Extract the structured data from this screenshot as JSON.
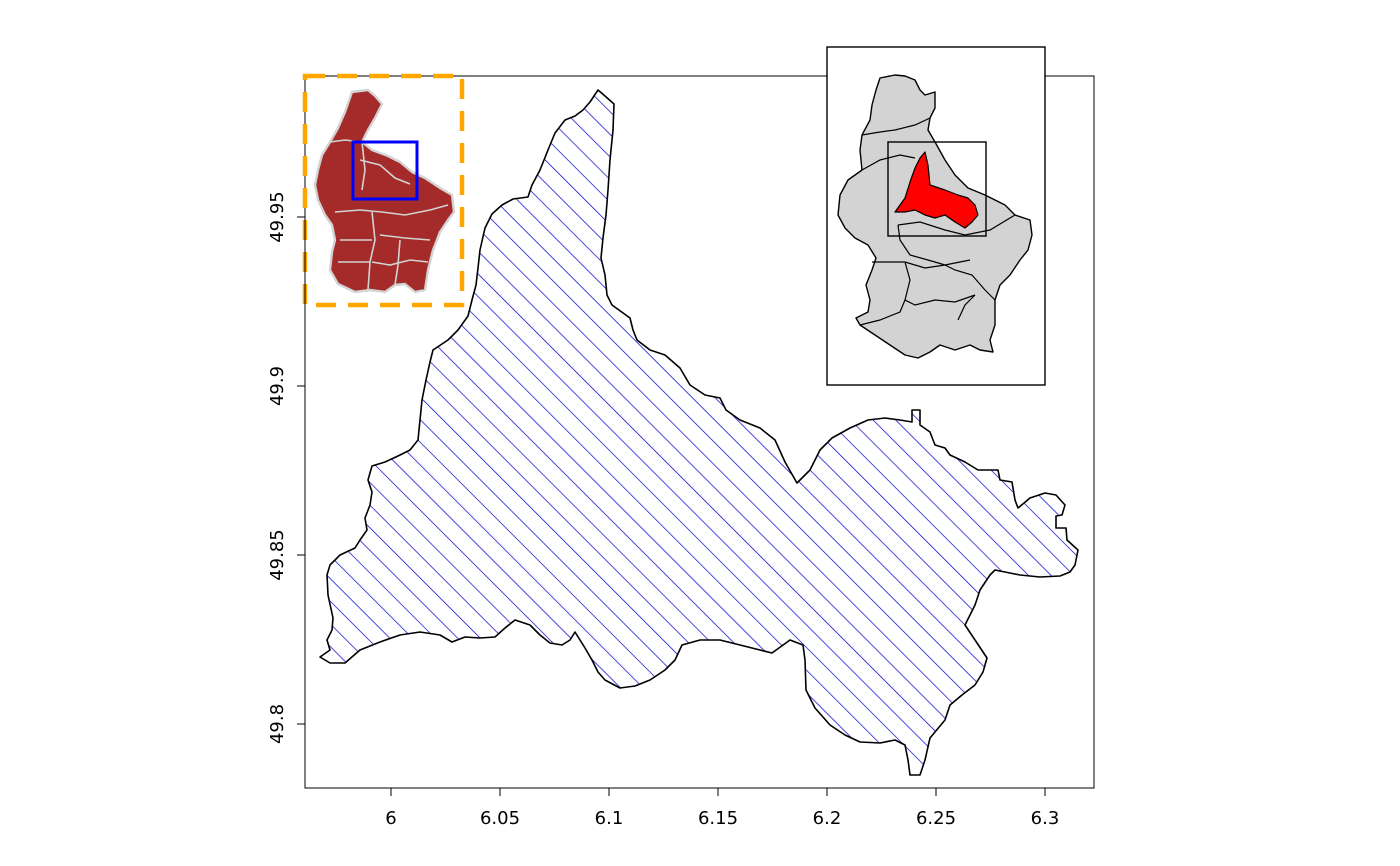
{
  "map": {
    "x_axis": {
      "ticks": [
        {
          "value": 6,
          "label": "6"
        },
        {
          "value": 6.05,
          "label": "6.05"
        },
        {
          "value": 6.1,
          "label": "6.1"
        },
        {
          "value": 6.15,
          "label": "6.15"
        },
        {
          "value": 6.2,
          "label": "6.2"
        },
        {
          "value": 6.25,
          "label": "6.25"
        },
        {
          "value": 6.3,
          "label": "6.3"
        }
      ]
    },
    "y_axis": {
      "ticks": [
        {
          "value": 49.8,
          "label": "49.8"
        },
        {
          "value": 49.85,
          "label": "49.85"
        },
        {
          "value": 49.9,
          "label": "49.9"
        },
        {
          "value": 49.95,
          "label": "49.95"
        }
      ]
    },
    "colors": {
      "main_fill_hatch": "#0000cc",
      "main_outline": "#000000",
      "inset_left_fill": "#a52a2a",
      "inset_left_border": "#ffa500",
      "inset_left_borders_lines": "#d3d3d3",
      "inset_left_box": "#0000ff",
      "inset_right_fill": "#d3d3d3",
      "inset_right_highlight": "#ff0000"
    },
    "legend": {
      "main": "hatched-region-map",
      "inset_left": "locator-map-brown",
      "inset_right": "locator-map-grey-with-red-highlight"
    }
  }
}
